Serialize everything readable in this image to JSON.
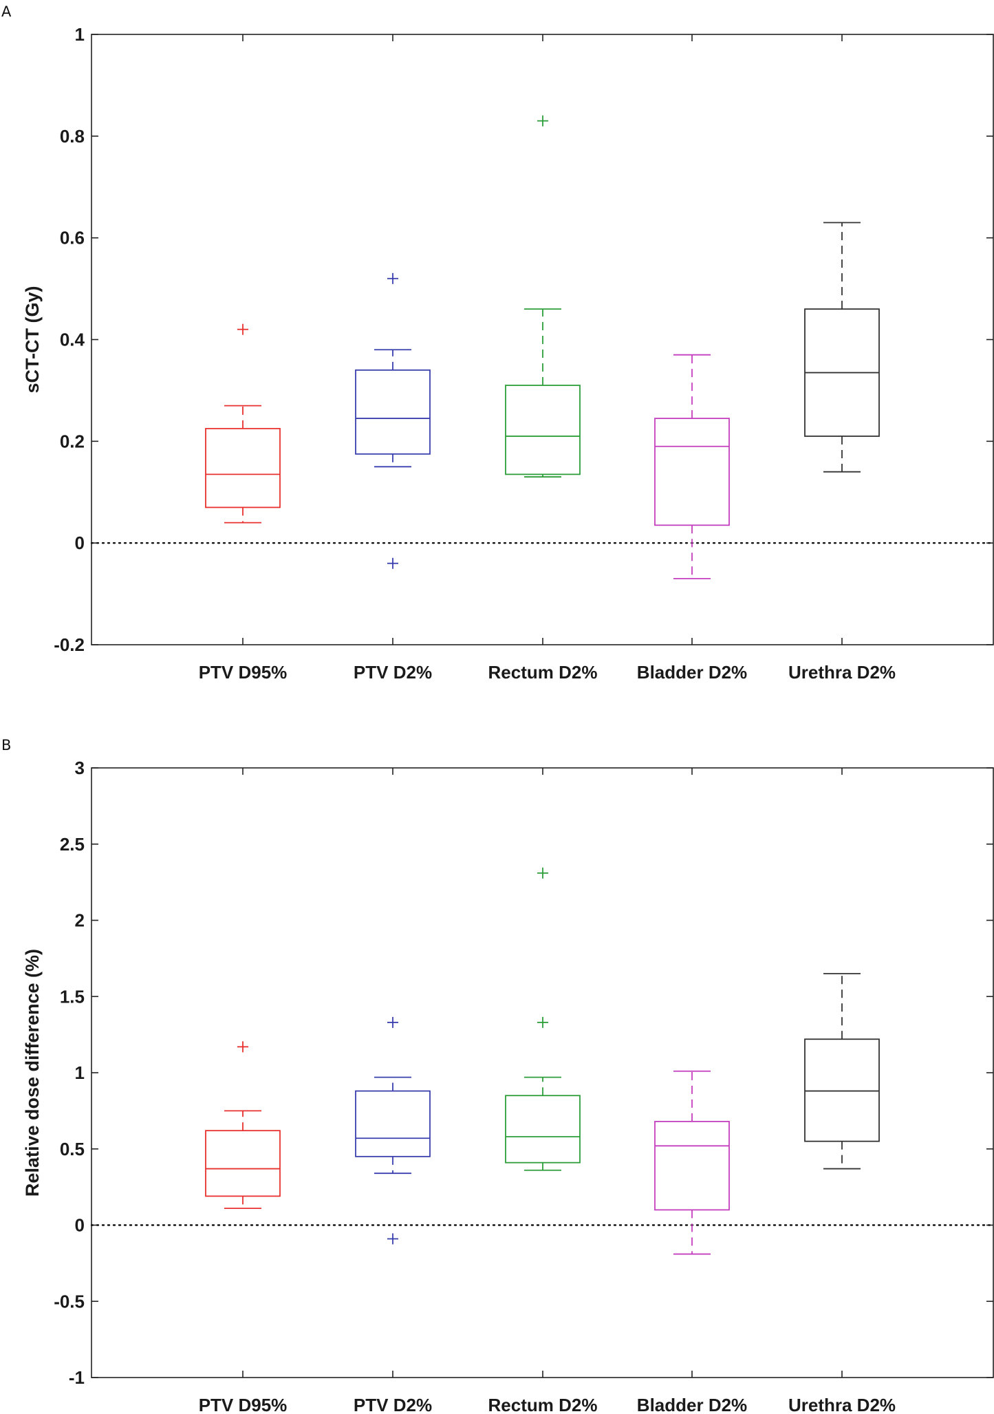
{
  "chart_data": [
    {
      "panel_label": "A",
      "type": "box",
      "ylabel": "sCT-CT (Gy)",
      "ylim": [
        -0.2,
        1
      ],
      "yticks": [
        -0.2,
        0,
        0.2,
        0.4,
        0.6,
        0.8,
        1
      ],
      "ytick_labels": [
        "-0.2",
        "0",
        "0.2",
        "0.4",
        "0.6",
        "0.8",
        "1"
      ],
      "reference_line": 0,
      "categories": [
        "PTV D95%",
        "PTV D2%",
        "Rectum D2%",
        "Bladder D2%",
        "Urethra D2%"
      ],
      "colors": [
        "#e8312f",
        "#3a3fae",
        "#2e9e3a",
        "#c43fbf",
        "#333333"
      ],
      "boxes": [
        {
          "whisker_low": 0.04,
          "q1": 0.07,
          "median": 0.135,
          "q3": 0.225,
          "whisker_high": 0.27,
          "outliers": [
            0.42
          ]
        },
        {
          "whisker_low": 0.15,
          "q1": 0.175,
          "median": 0.245,
          "q3": 0.34,
          "whisker_high": 0.38,
          "outliers": [
            0.52,
            -0.04
          ]
        },
        {
          "whisker_low": 0.13,
          "q1": 0.135,
          "median": 0.21,
          "q3": 0.31,
          "whisker_high": 0.46,
          "outliers": [
            0.83
          ]
        },
        {
          "whisker_low": -0.07,
          "q1": 0.035,
          "median": 0.19,
          "q3": 0.245,
          "whisker_high": 0.37,
          "outliers": []
        },
        {
          "whisker_low": 0.14,
          "q1": 0.21,
          "median": 0.335,
          "q3": 0.46,
          "whisker_high": 0.63,
          "outliers": []
        }
      ]
    },
    {
      "panel_label": "B",
      "type": "box",
      "ylabel": "Relative dose difference (%)",
      "ylim": [
        -1,
        3
      ],
      "yticks": [
        -1,
        -0.5,
        0,
        0.5,
        1,
        1.5,
        2,
        2.5,
        3
      ],
      "ytick_labels": [
        "-1",
        "-0.5",
        "0",
        "0.5",
        "1",
        "1.5",
        "2",
        "2.5",
        "3"
      ],
      "reference_line": 0,
      "categories": [
        "PTV D95%",
        "PTV D2%",
        "Rectum D2%",
        "Bladder D2%",
        "Urethra D2%"
      ],
      "colors": [
        "#e8312f",
        "#3a3fae",
        "#2e9e3a",
        "#c43fbf",
        "#333333"
      ],
      "boxes": [
        {
          "whisker_low": 0.11,
          "q1": 0.19,
          "median": 0.37,
          "q3": 0.62,
          "whisker_high": 0.75,
          "outliers": [
            1.17
          ]
        },
        {
          "whisker_low": 0.34,
          "q1": 0.45,
          "median": 0.57,
          "q3": 0.88,
          "whisker_high": 0.97,
          "outliers": [
            1.33,
            -0.09
          ]
        },
        {
          "whisker_low": 0.36,
          "q1": 0.41,
          "median": 0.58,
          "q3": 0.85,
          "whisker_high": 0.97,
          "outliers": [
            2.31,
            1.33
          ]
        },
        {
          "whisker_low": -0.19,
          "q1": 0.1,
          "median": 0.52,
          "q3": 0.68,
          "whisker_high": 1.01,
          "outliers": []
        },
        {
          "whisker_low": 0.37,
          "q1": 0.55,
          "median": 0.88,
          "q3": 1.22,
          "whisker_high": 1.65,
          "outliers": []
        }
      ]
    }
  ]
}
